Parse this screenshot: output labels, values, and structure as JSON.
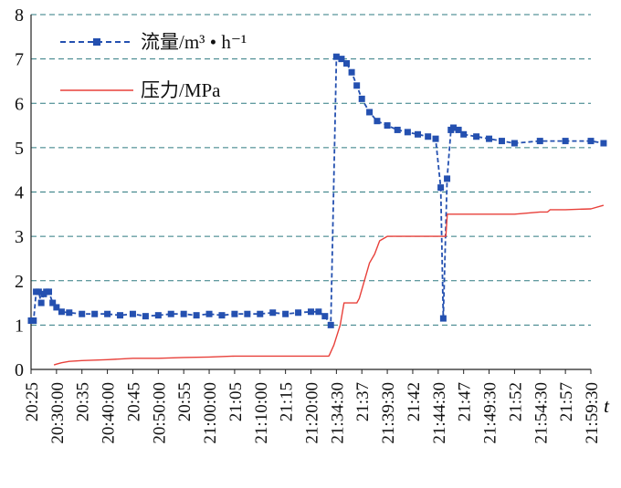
{
  "chart_data": {
    "type": "line",
    "title": "",
    "xlabel": "t",
    "ylabel": "",
    "ylim": [
      0,
      8
    ],
    "yticks": [
      "0",
      "1",
      "2",
      "3",
      "4",
      "5",
      "6",
      "7",
      "8"
    ],
    "grid": "horizontal-dashed",
    "legend_position": "top-left",
    "categories": [
      "20:25",
      "20:30:00",
      "20:35",
      "20:40:00",
      "20:45",
      "20:50:00",
      "20:55",
      "21:00:00",
      "21:05",
      "21:10:00",
      "21:15",
      "21:20:00",
      "21:34:30",
      "21:37",
      "21:39:30",
      "21:42",
      "21:44:30",
      "21:47",
      "21:49:30",
      "21:52",
      "21:54:30",
      "21:57",
      "21:59:30"
    ],
    "series": [
      {
        "name": "流量/m³ • h⁻¹",
        "color": "#2450b0",
        "style": "dashed-square-markers",
        "x": [
          0,
          0.1,
          0.2,
          0.3,
          0.4,
          0.5,
          0.6,
          0.7,
          0.85,
          1.0,
          1.2,
          1.5,
          2.0,
          2.5,
          3.0,
          3.5,
          4.0,
          4.5,
          5.0,
          5.5,
          6.0,
          6.5,
          7.0,
          7.5,
          8.0,
          8.5,
          9.0,
          9.5,
          10.0,
          10.5,
          11.0,
          11.3,
          11.55,
          11.78,
          12.0,
          12.2,
          12.4,
          12.6,
          12.8,
          13.0,
          13.3,
          13.6,
          14.0,
          14.4,
          14.8,
          15.2,
          15.6,
          15.9,
          16.1,
          16.2,
          16.35,
          16.5,
          16.6,
          16.8,
          17.0,
          17.5,
          18.0,
          18.5,
          19.0,
          20.0,
          21.0,
          22.0,
          22.5
        ],
        "values": [
          1.1,
          1.1,
          1.75,
          1.75,
          1.5,
          1.7,
          1.75,
          1.75,
          1.5,
          1.4,
          1.3,
          1.28,
          1.25,
          1.25,
          1.25,
          1.22,
          1.25,
          1.2,
          1.22,
          1.25,
          1.25,
          1.22,
          1.25,
          1.22,
          1.25,
          1.25,
          1.25,
          1.28,
          1.25,
          1.28,
          1.3,
          1.3,
          1.2,
          1.0,
          7.05,
          7.0,
          6.9,
          6.7,
          6.4,
          6.1,
          5.8,
          5.6,
          5.5,
          5.4,
          5.35,
          5.3,
          5.25,
          5.2,
          4.1,
          1.15,
          4.3,
          5.4,
          5.45,
          5.4,
          5.3,
          5.25,
          5.2,
          5.15,
          5.1,
          5.15,
          5.15,
          5.15,
          5.1
        ]
      },
      {
        "name": "压力/MPa",
        "color": "#e8403a",
        "style": "solid",
        "x": [
          0.9,
          1.0,
          1.2,
          1.5,
          2.0,
          3.0,
          4.0,
          5.0,
          6.0,
          7.0,
          8.0,
          9.0,
          10.0,
          11.0,
          11.7,
          11.72,
          11.9,
          12.15,
          12.3,
          12.5,
          12.8,
          12.9,
          13.1,
          13.3,
          13.5,
          13.7,
          14.0,
          14.3,
          14.6,
          15.0,
          15.5,
          16.0,
          16.3,
          16.36,
          16.5,
          17.0,
          17.5,
          18.0,
          19.0,
          20.0,
          20.3,
          20.4,
          21.0,
          22.0,
          22.5
        ],
        "values": [
          0.1,
          0.12,
          0.15,
          0.18,
          0.2,
          0.22,
          0.25,
          0.25,
          0.27,
          0.28,
          0.3,
          0.3,
          0.3,
          0.3,
          0.3,
          0.32,
          0.55,
          1.0,
          1.5,
          1.5,
          1.5,
          1.6,
          2.0,
          2.4,
          2.6,
          2.9,
          3.0,
          3.0,
          3.0,
          3.0,
          3.0,
          3.0,
          3.0,
          3.5,
          3.5,
          3.5,
          3.5,
          3.5,
          3.5,
          3.55,
          3.55,
          3.6,
          3.6,
          3.62,
          3.7
        ]
      }
    ]
  }
}
